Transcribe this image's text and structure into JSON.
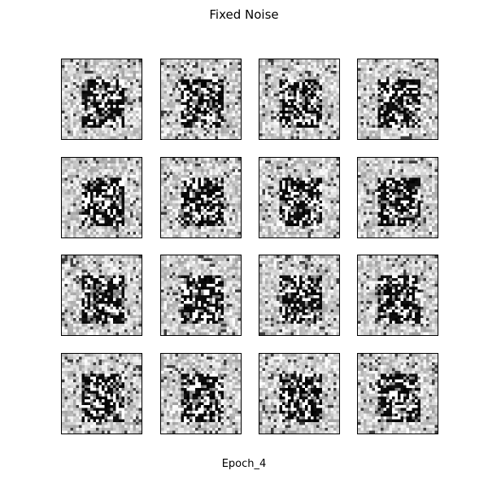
{
  "figure": {
    "title": "Fixed Noise",
    "footer": "Epoch_4"
  },
  "grid": {
    "rows": 4,
    "cols": 4,
    "image_resolution": 28,
    "colormap": "gray",
    "samples": [
      {
        "seed": 11
      },
      {
        "seed": 23
      },
      {
        "seed": 37
      },
      {
        "seed": 41
      },
      {
        "seed": 53
      },
      {
        "seed": 67
      },
      {
        "seed": 71
      },
      {
        "seed": 83
      },
      {
        "seed": 97
      },
      {
        "seed": 101
      },
      {
        "seed": 113
      },
      {
        "seed": 127
      },
      {
        "seed": 131
      },
      {
        "seed": 149
      },
      {
        "seed": 151
      },
      {
        "seed": 163
      }
    ]
  }
}
